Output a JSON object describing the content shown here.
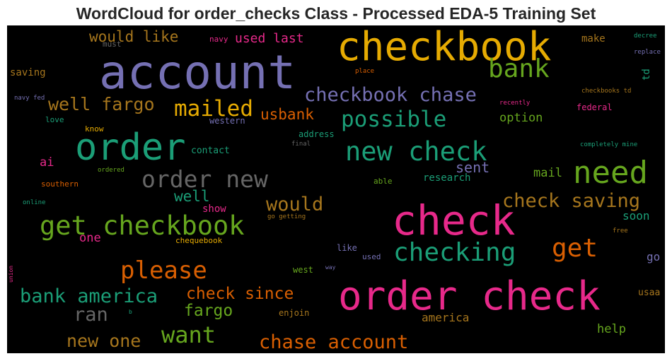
{
  "title": "WordCloud for order_checks Class - Processed EDA-5 Training Set",
  "chart_data": {
    "type": "wordcloud",
    "background": "#000000",
    "palette": [
      "#7570b3",
      "#e7298a",
      "#66a61e",
      "#e6ab02",
      "#a6761d",
      "#666666",
      "#1b9e77",
      "#d95f02"
    ],
    "words": [
      {
        "text": "account",
        "weight": 100,
        "color": "#7570b3"
      },
      {
        "text": "checkbook",
        "weight": 98,
        "color": "#e6ab02"
      },
      {
        "text": "order check",
        "weight": 92,
        "color": "#e7298a"
      },
      {
        "text": "check",
        "weight": 90,
        "color": "#e7298a"
      },
      {
        "text": "order",
        "weight": 80,
        "color": "#1b9e77"
      },
      {
        "text": "need",
        "weight": 70,
        "color": "#66a61e"
      },
      {
        "text": "get checkbook",
        "weight": 58,
        "color": "#66a61e"
      },
      {
        "text": "new check",
        "weight": 56,
        "color": "#1b9e77"
      },
      {
        "text": "bank",
        "weight": 54,
        "color": "#66a61e"
      },
      {
        "text": "checking",
        "weight": 54,
        "color": "#1b9e77"
      },
      {
        "text": "get",
        "weight": 54,
        "color": "#d95f02"
      },
      {
        "text": "please",
        "weight": 52,
        "color": "#d95f02"
      },
      {
        "text": "order new",
        "weight": 50,
        "color": "#666666"
      },
      {
        "text": "possible",
        "weight": 48,
        "color": "#1b9e77"
      },
      {
        "text": "want",
        "weight": 46,
        "color": "#66a61e"
      },
      {
        "text": "mailed",
        "weight": 45,
        "color": "#e6ab02"
      },
      {
        "text": "check saving",
        "weight": 42,
        "color": "#a6761d"
      },
      {
        "text": "bank america",
        "weight": 42,
        "color": "#1b9e77"
      },
      {
        "text": "chase account",
        "weight": 42,
        "color": "#d95f02"
      },
      {
        "text": "checkbook chase",
        "weight": 41,
        "color": "#7570b3"
      },
      {
        "text": "would",
        "weight": 40,
        "color": "#a6761d"
      },
      {
        "text": "ran",
        "weight": 40,
        "color": "#666666"
      },
      {
        "text": "new one",
        "weight": 38,
        "color": "#a6761d"
      },
      {
        "text": "well fargo",
        "weight": 38,
        "color": "#a6761d"
      },
      {
        "text": "check since",
        "weight": 34,
        "color": "#d95f02"
      },
      {
        "text": "fargo",
        "weight": 33,
        "color": "#66a61e"
      },
      {
        "text": "would like",
        "weight": 31,
        "color": "#a6761d"
      },
      {
        "text": "usbank",
        "weight": 30,
        "color": "#d95f02"
      },
      {
        "text": "well",
        "weight": 30,
        "color": "#1b9e77"
      },
      {
        "text": "sent",
        "weight": 28,
        "color": "#7570b3"
      },
      {
        "text": "used last",
        "weight": 27,
        "color": "#e7298a"
      },
      {
        "text": "help",
        "weight": 24,
        "color": "#66a61e"
      },
      {
        "text": "option",
        "weight": 24,
        "color": "#66a61e"
      },
      {
        "text": "mail",
        "weight": 24,
        "color": "#66a61e"
      },
      {
        "text": "america",
        "weight": 23,
        "color": "#a6761d"
      },
      {
        "text": "one",
        "weight": 23,
        "color": "#e7298a"
      },
      {
        "text": "ai",
        "weight": 23,
        "color": "#e7298a"
      },
      {
        "text": "go",
        "weight": 22,
        "color": "#7570b3"
      },
      {
        "text": "soon",
        "weight": 22,
        "color": "#1b9e77"
      },
      {
        "text": "research",
        "weight": 20,
        "color": "#1b9e77"
      },
      {
        "text": "td",
        "weight": 20,
        "color": "#1b9e77"
      },
      {
        "text": "saving",
        "weight": 20,
        "color": "#a6761d"
      },
      {
        "text": "show",
        "weight": 20,
        "color": "#e7298a"
      },
      {
        "text": "contact",
        "weight": 19,
        "color": "#1b9e77"
      },
      {
        "text": "make",
        "weight": 19,
        "color": "#a6761d"
      },
      {
        "text": "usaa",
        "weight": 18,
        "color": "#a6761d"
      },
      {
        "text": "enjoin",
        "weight": 18,
        "color": "#a6761d"
      },
      {
        "text": "address",
        "weight": 18,
        "color": "#1b9e77"
      },
      {
        "text": "federal",
        "weight": 18,
        "color": "#e7298a"
      },
      {
        "text": "like",
        "weight": 18,
        "color": "#7570b3"
      },
      {
        "text": "west",
        "weight": 17,
        "color": "#66a61e"
      },
      {
        "text": "western",
        "weight": 17,
        "color": "#7570b3"
      },
      {
        "text": "love",
        "weight": 17,
        "color": "#1b9e77"
      },
      {
        "text": "southern",
        "weight": 17,
        "color": "#d95f02"
      },
      {
        "text": "know",
        "weight": 16,
        "color": "#e6ab02"
      },
      {
        "text": "used",
        "weight": 16,
        "color": "#7570b3"
      },
      {
        "text": "able",
        "weight": 16,
        "color": "#66a61e"
      },
      {
        "text": "chequebook",
        "weight": 15,
        "color": "#e6ab02"
      },
      {
        "text": "navy",
        "weight": 14,
        "color": "#e7298a"
      },
      {
        "text": "must",
        "weight": 14,
        "color": "#666666"
      },
      {
        "text": "online",
        "weight": 13,
        "color": "#1b9e77"
      },
      {
        "text": "recently",
        "weight": 13,
        "color": "#e7298a"
      },
      {
        "text": "checkbooks td",
        "weight": 13,
        "color": "#a6761d"
      },
      {
        "text": "decree",
        "weight": 13,
        "color": "#1b9e77"
      },
      {
        "text": "replace",
        "weight": 13,
        "color": "#7570b3"
      },
      {
        "text": "free",
        "weight": 12,
        "color": "#a6761d"
      },
      {
        "text": "completely mine",
        "weight": 12,
        "color": "#1b9e77"
      },
      {
        "text": "navy fed",
        "weight": 12,
        "color": "#7570b3"
      },
      {
        "text": "place",
        "weight": 12,
        "color": "#d95f02"
      },
      {
        "text": "ordered",
        "weight": 11,
        "color": "#66a61e"
      },
      {
        "text": "final",
        "weight": 11,
        "color": "#666666"
      },
      {
        "text": "go getting",
        "weight": 11,
        "color": "#a6761d"
      },
      {
        "text": "way",
        "weight": 11,
        "color": "#7570b3"
      },
      {
        "text": "b",
        "weight": 11,
        "color": "#1b9e77"
      },
      {
        "text": "union",
        "weight": 11,
        "color": "#e7298a"
      }
    ]
  }
}
